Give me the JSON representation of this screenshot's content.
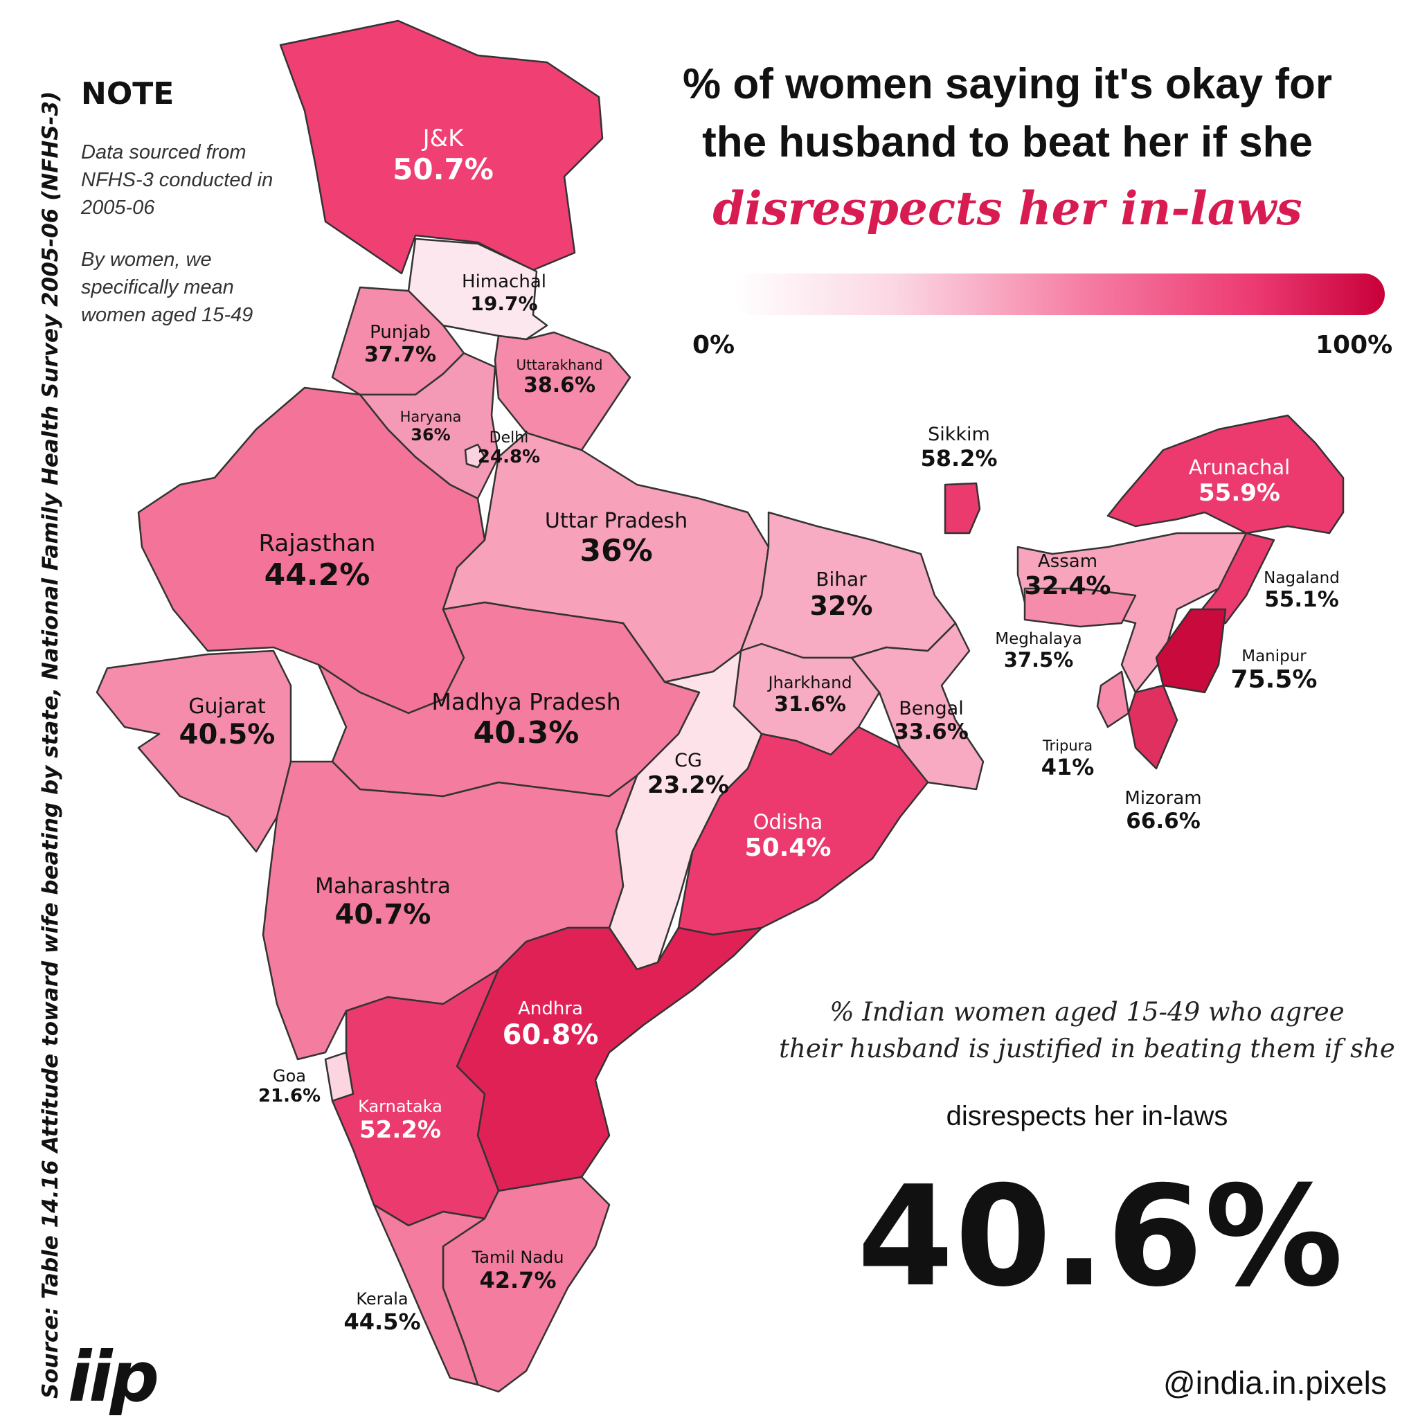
{
  "note": {
    "title": "NOTE",
    "line1": "Data sourced from NFHS-3 conducted in 2005-06",
    "line2": "By women, we specifically mean women aged 15-49"
  },
  "title": {
    "line1": "% of women saying it's okay for",
    "line2": "the husband to beat her if she",
    "accent": "disrespects her in-laws"
  },
  "legend": {
    "min": "0%",
    "max": "100%",
    "colors": [
      "#ffffff",
      "#fbd6e3",
      "#f57aa1",
      "#ec3a72",
      "#c8003a"
    ]
  },
  "summary": {
    "line1": "% Indian women aged 15-49 who agree",
    "line2": "their husband is justified in beating them if she",
    "line3": "disrespects her in-laws",
    "value": "40.6%"
  },
  "source": "Source:  Table 14.16 Attitude toward wife beating by state, National Family Health Survey 2005-06 (NFHS-3)",
  "logo": "iip",
  "handle": "@india.in.pixels",
  "states": [
    {
      "name": "J&K",
      "value": "50.7%"
    },
    {
      "name": "Himachal",
      "value": "19.7%"
    },
    {
      "name": "Punjab",
      "value": "37.7%"
    },
    {
      "name": "Uttarakhand",
      "value": "38.6%"
    },
    {
      "name": "Haryana",
      "value": "36%"
    },
    {
      "name": "Delhi",
      "value": "24.8%"
    },
    {
      "name": "Rajasthan",
      "value": "44.2%"
    },
    {
      "name": "Uttar Pradesh",
      "value": "36%"
    },
    {
      "name": "Bihar",
      "value": "32%"
    },
    {
      "name": "Sikkim",
      "value": "58.2%"
    },
    {
      "name": "Arunachal",
      "value": "55.9%"
    },
    {
      "name": "Assam",
      "value": "32.4%"
    },
    {
      "name": "Nagaland",
      "value": "55.1%"
    },
    {
      "name": "Meghalaya",
      "value": "37.5%"
    },
    {
      "name": "Manipur",
      "value": "75.5%"
    },
    {
      "name": "Gujarat",
      "value": "40.5%"
    },
    {
      "name": "Madhya Pradesh",
      "value": "40.3%"
    },
    {
      "name": "Jharkhand",
      "value": "31.6%"
    },
    {
      "name": "Bengal",
      "value": "33.6%"
    },
    {
      "name": "Tripura",
      "value": "41%"
    },
    {
      "name": "CG",
      "value": "23.2%"
    },
    {
      "name": "Mizoram",
      "value": "66.6%"
    },
    {
      "name": "Odisha",
      "value": "50.4%"
    },
    {
      "name": "Maharashtra",
      "value": "40.7%"
    },
    {
      "name": "Andhra",
      "value": "60.8%"
    },
    {
      "name": "Goa",
      "value": "21.6%"
    },
    {
      "name": "Karnataka",
      "value": "52.2%"
    },
    {
      "name": "Tamil Nadu",
      "value": "42.7%"
    },
    {
      "name": "Kerala",
      "value": "44.5%"
    }
  ]
}
